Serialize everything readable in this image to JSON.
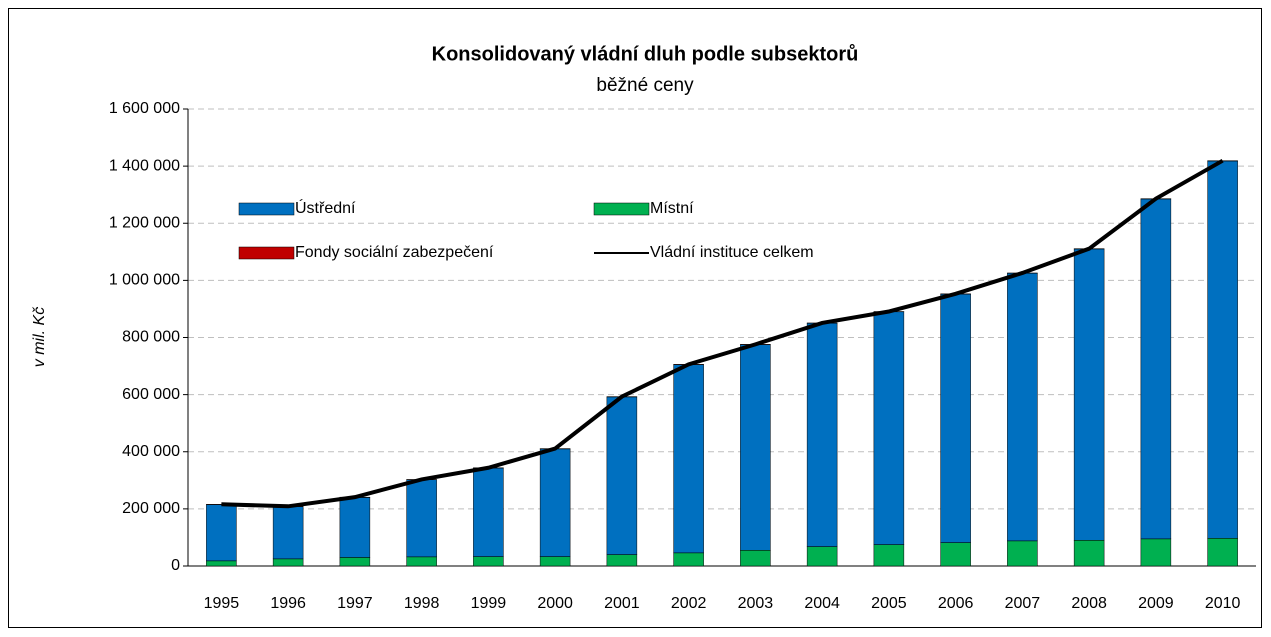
{
  "chart_data": {
    "type": "bar",
    "stacked": true,
    "title": "Konsolidovaný vládní dluh podle subsektorů",
    "subtitle": "běžné ceny",
    "y_label": "v mil. Kč",
    "categories": [
      "1995",
      "1996",
      "1997",
      "1998",
      "1999",
      "2000",
      "2001",
      "2002",
      "2003",
      "2004",
      "2005",
      "2006",
      "2007",
      "2008",
      "2009",
      "2010"
    ],
    "series": [
      {
        "name": "Místní",
        "color": "#00b050",
        "values": [
          18000,
          25000,
          30000,
          32000,
          33000,
          33000,
          40000,
          46000,
          55000,
          68000,
          75000,
          82000,
          88000,
          90000,
          95000,
          97000
        ]
      },
      {
        "name": "Ústřední",
        "color": "#0070c0",
        "values": [
          197000,
          183000,
          210000,
          270000,
          310000,
          377000,
          552000,
          659000,
          720000,
          782000,
          815000,
          870000,
          937000,
          1020000,
          1190000,
          1321000
        ]
      },
      {
        "name": "Fondy sociální zabezpečení",
        "color": "#c00000",
        "values": [
          1000,
          1000,
          1000,
          1000,
          1000,
          1000,
          1000,
          1000,
          1000,
          1000,
          1000,
          1000,
          1000,
          1000,
          1000,
          1000
        ]
      },
      {
        "name": "Vládní instituce celkem",
        "type": "line",
        "color": "#000000",
        "values": [
          216000,
          209000,
          241000,
          303000,
          344000,
          411000,
          593000,
          706000,
          776000,
          851000,
          891000,
          953000,
          1026000,
          1111000,
          1286000,
          1419000
        ]
      }
    ],
    "legend_order": [
      1,
      0,
      2,
      3
    ],
    "ylim": [
      0,
      1600000
    ],
    "yticks": [
      0,
      {
        "value": 200000,
        "label": "200 000"
      },
      {
        "value": 400000,
        "label": "400 000"
      },
      {
        "value": 600000,
        "label": "600 000"
      },
      {
        "value": 800000,
        "label": "800 000"
      },
      {
        "value": 1000000,
        "label": "1 000 000"
      },
      {
        "value": 1200000,
        "label": "1 200 000"
      },
      {
        "value": 1400000,
        "label": "1 400 000"
      },
      {
        "value": 1600000,
        "label": "1 600 000"
      }
    ],
    "grid": true
  }
}
